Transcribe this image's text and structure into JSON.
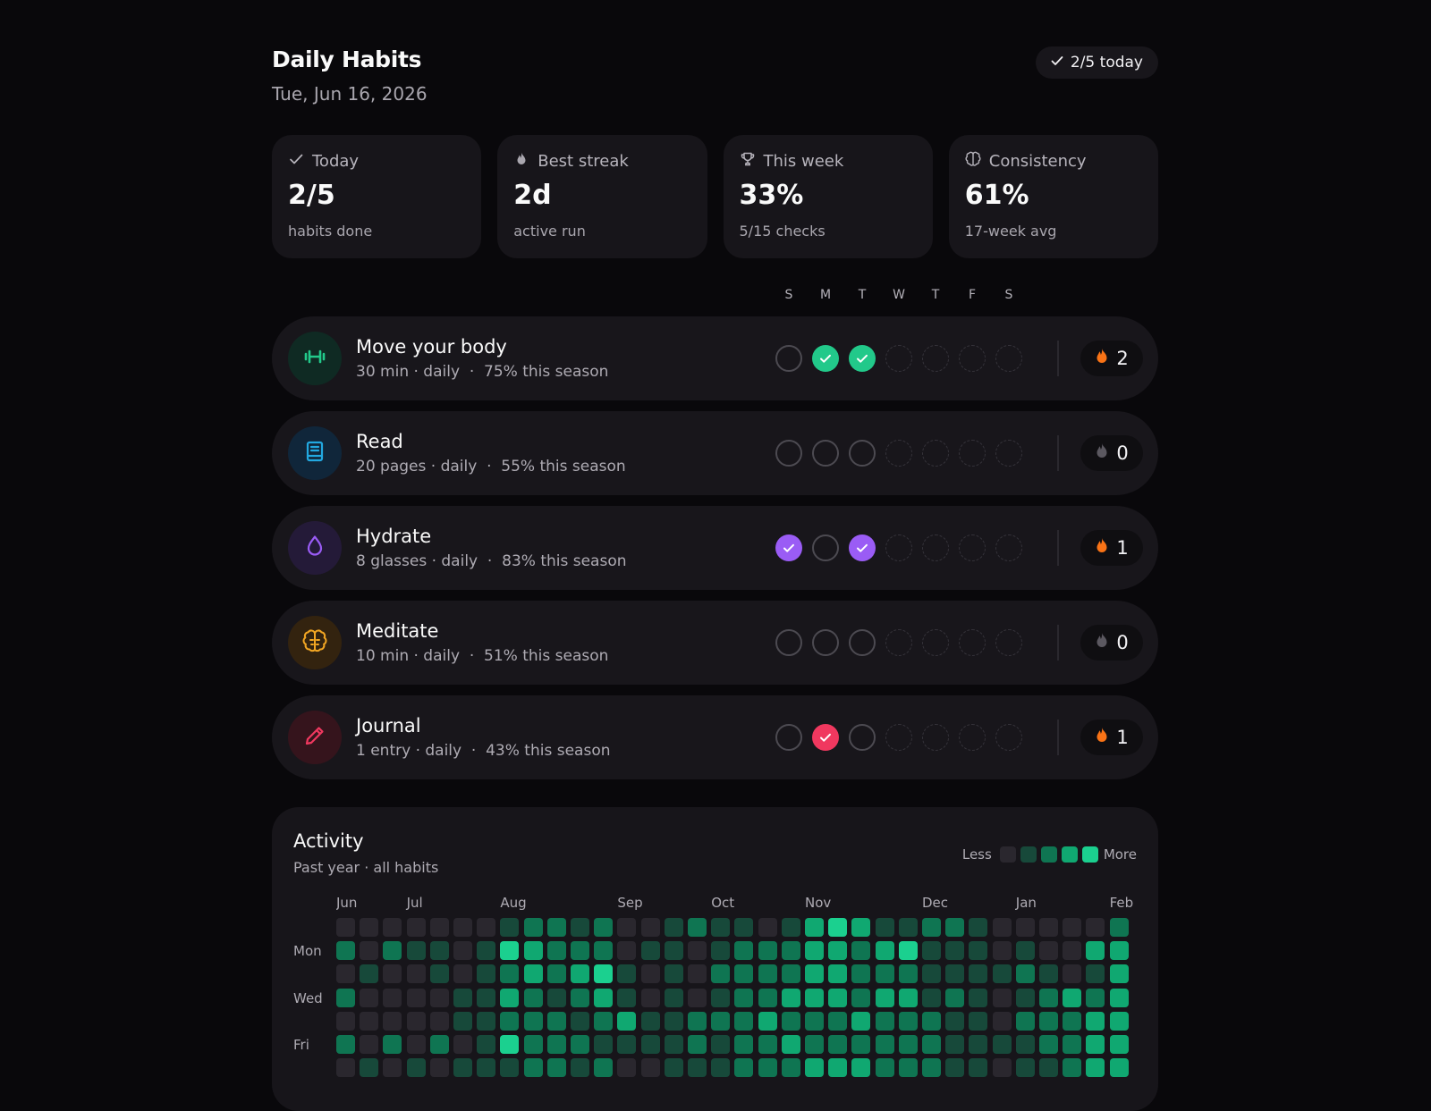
{
  "header": {
    "title": "Daily Habits",
    "date": "Tue, Jun 16, 2026",
    "today_badge": "2/5 today"
  },
  "stats": [
    {
      "label": "Today",
      "value": "2/5",
      "sub": "habits done",
      "icon": "check-icon"
    },
    {
      "label": "Best streak",
      "value": "2d",
      "sub": "active run",
      "icon": "flame-icon"
    },
    {
      "label": "This week",
      "value": "33%",
      "sub": "5/15 checks",
      "icon": "trophy-icon"
    },
    {
      "label": "Consistency",
      "value": "61%",
      "sub": "17-week avg",
      "icon": "brain-icon"
    }
  ],
  "weekdays": [
    "S",
    "M",
    "T",
    "W",
    "T",
    "F",
    "S"
  ],
  "habits": [
    {
      "name": "Move your body",
      "meta": "30 min · daily  ·  75% this season",
      "icon": "dumbbell-icon",
      "color": "#22c98a",
      "icon_bg": "#0f2a23",
      "days": [
        "empty",
        "done",
        "done",
        "future",
        "future",
        "future",
        "future"
      ],
      "streak": "2",
      "streak_active": true
    },
    {
      "name": "Read",
      "meta": "20 pages · daily  ·  55% this season",
      "icon": "book-icon",
      "color": "#22a8e0",
      "icon_bg": "#10263a",
      "days": [
        "empty",
        "empty",
        "empty",
        "future",
        "future",
        "future",
        "future"
      ],
      "streak": "0",
      "streak_active": false
    },
    {
      "name": "Hydrate",
      "meta": "8 glasses · daily  ·  83% this season",
      "icon": "droplet-icon",
      "color": "#9a5cf5",
      "icon_bg": "#241a38",
      "days": [
        "done",
        "empty",
        "done",
        "future",
        "future",
        "future",
        "future"
      ],
      "streak": "1",
      "streak_active": true
    },
    {
      "name": "Meditate",
      "meta": "10 min · daily  ·  51% this season",
      "icon": "brain-icon",
      "color": "#f2a623",
      "icon_bg": "#33230f",
      "days": [
        "empty",
        "empty",
        "empty",
        "future",
        "future",
        "future",
        "future"
      ],
      "streak": "0",
      "streak_active": false
    },
    {
      "name": "Journal",
      "meta": "1 entry · daily  ·  43% this season",
      "icon": "pencil-icon",
      "color": "#f0385f",
      "icon_bg": "#35141c",
      "days": [
        "empty",
        "done",
        "empty",
        "future",
        "future",
        "future",
        "future"
      ],
      "streak": "1",
      "streak_active": true
    }
  ],
  "activity": {
    "title": "Activity",
    "subtitle": "Past year · all habits",
    "legend_less": "Less",
    "legend_more": "More",
    "level_colors": [
      "#2a272e",
      "#17493a",
      "#0f7552",
      "#10a871",
      "#1bd08f"
    ],
    "day_labels": [
      "",
      "Mon",
      "",
      "Wed",
      "",
      "Fri",
      ""
    ],
    "months": [
      {
        "label": "Jun",
        "week": 0
      },
      {
        "label": "Jul",
        "week": 3
      },
      {
        "label": "Aug",
        "week": 7
      },
      {
        "label": "Sep",
        "week": 12
      },
      {
        "label": "Oct",
        "week": 16
      },
      {
        "label": "Nov",
        "week": 20
      },
      {
        "label": "Dec",
        "week": 25
      },
      {
        "label": "Jan",
        "week": 29
      },
      {
        "label": "Feb",
        "week": 33
      }
    ],
    "weeks": [
      [
        0,
        2,
        0,
        2,
        0,
        2,
        0
      ],
      [
        0,
        0,
        1,
        0,
        0,
        0,
        1
      ],
      [
        0,
        2,
        0,
        0,
        0,
        2,
        0
      ],
      [
        0,
        1,
        0,
        0,
        0,
        0,
        1
      ],
      [
        0,
        1,
        1,
        0,
        0,
        2,
        0
      ],
      [
        0,
        0,
        0,
        1,
        1,
        0,
        1
      ],
      [
        0,
        1,
        1,
        1,
        1,
        1,
        1
      ],
      [
        1,
        4,
        2,
        3,
        2,
        4,
        1
      ],
      [
        2,
        3,
        3,
        2,
        2,
        2,
        2
      ],
      [
        2,
        2,
        2,
        1,
        2,
        2,
        2
      ],
      [
        1,
        2,
        3,
        2,
        1,
        2,
        1
      ],
      [
        2,
        2,
        4,
        3,
        2,
        1,
        2
      ],
      [
        0,
        0,
        1,
        1,
        3,
        1,
        0
      ],
      [
        0,
        1,
        0,
        0,
        1,
        1,
        0
      ],
      [
        1,
        1,
        1,
        1,
        1,
        1,
        1
      ],
      [
        2,
        0,
        0,
        0,
        2,
        2,
        1
      ],
      [
        1,
        1,
        2,
        1,
        2,
        1,
        1
      ],
      [
        1,
        2,
        2,
        2,
        2,
        2,
        2
      ],
      [
        0,
        2,
        2,
        2,
        3,
        2,
        2
      ],
      [
        1,
        2,
        2,
        3,
        2,
        3,
        2
      ],
      [
        3,
        3,
        3,
        3,
        2,
        2,
        3
      ],
      [
        4,
        3,
        3,
        3,
        2,
        2,
        3
      ],
      [
        3,
        2,
        2,
        2,
        3,
        2,
        3
      ],
      [
        1,
        3,
        2,
        3,
        2,
        2,
        2
      ],
      [
        1,
        4,
        2,
        3,
        2,
        2,
        2
      ],
      [
        2,
        1,
        1,
        1,
        2,
        2,
        2
      ],
      [
        2,
        1,
        1,
        2,
        1,
        1,
        1
      ],
      [
        1,
        1,
        1,
        1,
        1,
        1,
        1
      ],
      [
        0,
        0,
        1,
        0,
        0,
        1,
        0
      ],
      [
        0,
        1,
        2,
        1,
        2,
        1,
        1
      ],
      [
        0,
        0,
        1,
        2,
        2,
        2,
        1
      ],
      [
        0,
        0,
        0,
        3,
        2,
        2,
        2
      ],
      [
        0,
        3,
        1,
        2,
        3,
        3,
        3
      ],
      [
        2,
        3,
        3,
        3,
        3,
        3,
        3
      ]
    ]
  }
}
